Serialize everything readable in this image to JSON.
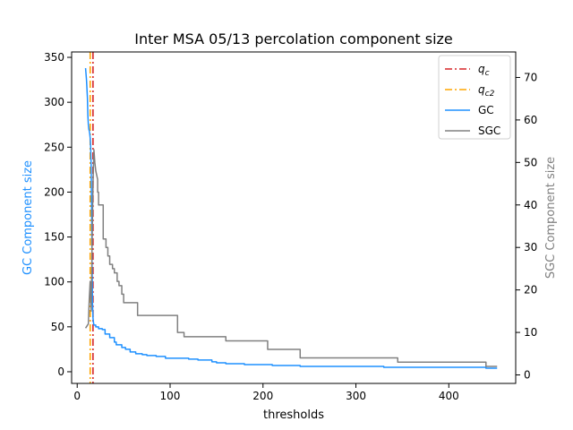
{
  "chart_data": {
    "type": "line",
    "title": "Inter MSA 05/13 percolation component size",
    "xlabel": "thresholds",
    "ylabel_left": "GC Component size",
    "ylabel_right": "SGC Component size",
    "xlim": [
      -6,
      472
    ],
    "ylim_left": [
      -13,
      356
    ],
    "ylim_right": [
      -2,
      76
    ],
    "x_ticks": [
      0,
      100,
      200,
      300,
      400
    ],
    "y_ticks_left": [
      0,
      50,
      100,
      150,
      200,
      250,
      300,
      350
    ],
    "y_ticks_right": [
      0,
      10,
      20,
      30,
      40,
      50,
      60,
      70
    ],
    "legend_position": "top-right",
    "grid": false,
    "vlines": [
      {
        "name": "q_c",
        "label_main": "q",
        "label_sub": "c",
        "x": 17,
        "color": "#d62728",
        "style": "dashdot"
      },
      {
        "name": "q_c2",
        "label_main": "q",
        "label_sub": "c2",
        "x": 14,
        "color": "#ffa500",
        "style": "dashdot"
      }
    ],
    "series": [
      {
        "name": "GC",
        "axis": "left",
        "color": "#1e90ff",
        "x": [
          9,
          10,
          11,
          11.5,
          12,
          12.5,
          13,
          13.5,
          14,
          14.5,
          15,
          15.5,
          16,
          16.5,
          17,
          17.5,
          18,
          20,
          20,
          23,
          23,
          27,
          27,
          30,
          30,
          35,
          35,
          40,
          40,
          42,
          42,
          48,
          48,
          52,
          52,
          57,
          57,
          63,
          63,
          70,
          70,
          75,
          75,
          85,
          85,
          95,
          95,
          107,
          107,
          120,
          120,
          130,
          130,
          145,
          145,
          150,
          150,
          160,
          160,
          180,
          180,
          210,
          210,
          240,
          240,
          330,
          330,
          440,
          440,
          452
        ],
        "y": [
          338,
          325,
          305,
          285,
          275,
          270,
          268,
          265,
          260,
          250,
          230,
          180,
          120,
          75,
          60,
          55,
          52,
          52,
          50,
          50,
          48,
          48,
          47,
          47,
          42,
          42,
          38,
          38,
          33,
          33,
          30,
          30,
          27,
          27,
          25,
          25,
          22,
          22,
          20,
          20,
          19,
          19,
          18,
          18,
          17,
          17,
          15,
          15,
          15,
          15,
          14,
          14,
          13,
          13,
          11,
          11,
          10,
          10,
          9,
          9,
          8,
          8,
          7,
          7,
          6,
          6,
          5,
          5,
          4,
          4
        ]
      },
      {
        "name": "SGC",
        "axis": "right",
        "color": "#808080",
        "x": [
          9,
          12,
          13,
          14,
          15,
          16,
          17,
          18,
          19,
          20,
          22,
          22,
          23,
          23,
          25,
          25,
          28,
          28,
          31,
          31,
          33,
          33,
          35,
          35,
          38,
          38,
          40,
          40,
          43,
          43,
          45,
          45,
          48,
          48,
          50,
          50,
          52,
          52,
          55,
          55,
          65,
          65,
          108,
          108,
          115,
          115,
          160,
          160,
          205,
          205,
          240,
          240,
          345,
          345,
          440,
          440,
          452
        ],
        "y": [
          11,
          12,
          18,
          22,
          15,
          30,
          45,
          53,
          50,
          48,
          46,
          43,
          43,
          40,
          40,
          40,
          40,
          32,
          32,
          30,
          30,
          28,
          28,
          26,
          26,
          25,
          25,
          24,
          24,
          22,
          22,
          21,
          21,
          19,
          19,
          17,
          17,
          17,
          17,
          17,
          17,
          14,
          14,
          10,
          10,
          9,
          9,
          8,
          8,
          6,
          6,
          4,
          4,
          3,
          3,
          2,
          2
        ]
      }
    ]
  }
}
